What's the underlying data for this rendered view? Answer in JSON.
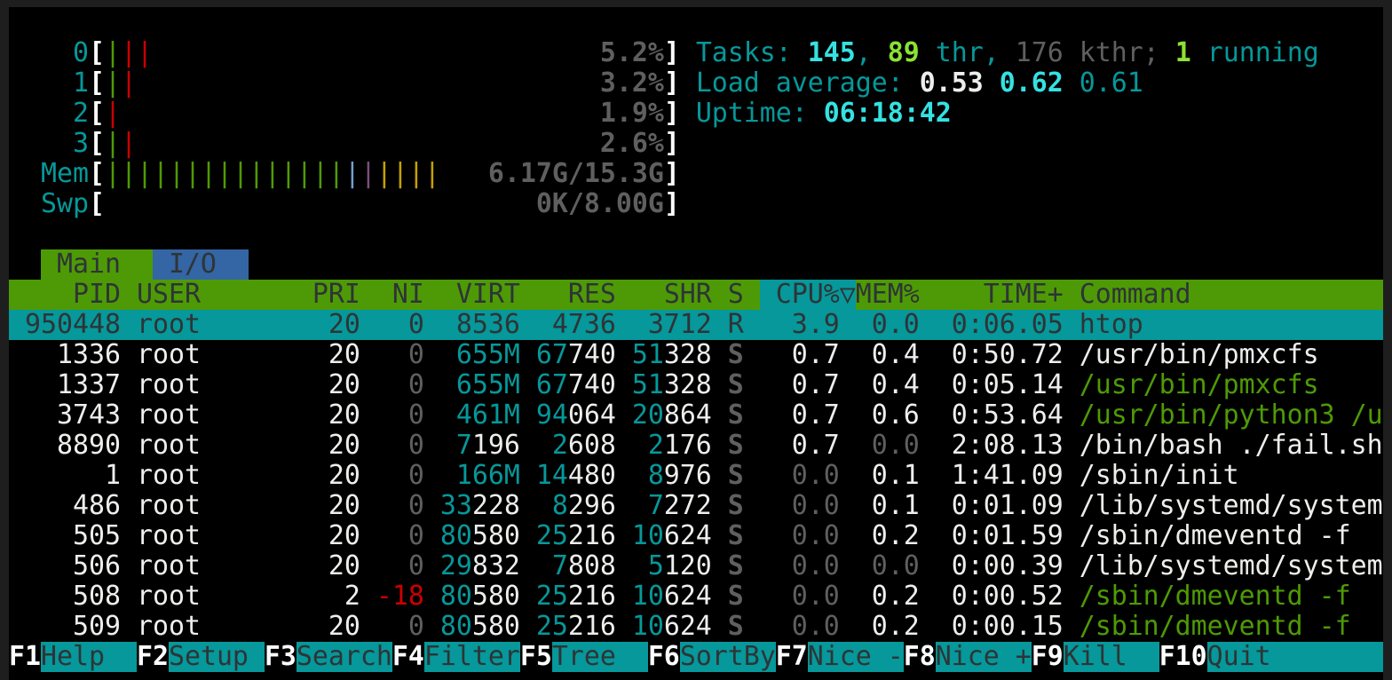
{
  "palette": {
    "teal": "#06989a",
    "cyan": "#34e2e2",
    "green": "#4e9a06",
    "lgreen": "#8ae234",
    "gray": "#5f5f5f",
    "white": "#eeeeec",
    "red": "#cc0000",
    "dark": "#2e3436",
    "blue": "#729fcf",
    "purple": "#75507b",
    "yellow": "#c4a000",
    "tabblue": "#3465a4"
  },
  "meters": {
    "cpus": [
      {
        "label": "0",
        "bars": [
          "green",
          "red",
          "red"
        ],
        "value": "5.2%"
      },
      {
        "label": "1",
        "bars": [
          "green",
          "red"
        ],
        "value": "3.2%"
      },
      {
        "label": "2",
        "bars": [
          "red"
        ],
        "value": "1.9%"
      },
      {
        "label": "3",
        "bars": [
          "green",
          "red"
        ],
        "value": "2.6%"
      }
    ],
    "mem": {
      "label": "Mem",
      "segments": [
        {
          "color": "green",
          "count": 15
        },
        {
          "color": "blue",
          "count": 1
        },
        {
          "color": "purple",
          "count": 1
        },
        {
          "color": "yellow",
          "count": 4
        }
      ],
      "value": "6.17G/15.3G"
    },
    "swp": {
      "label": "Swp",
      "segments": [],
      "value": "0K/8.00G"
    }
  },
  "summary": {
    "tasks": [
      {
        "text": "Tasks:",
        "color": "teal"
      },
      {
        "text": "145",
        "color": "cyan",
        "bold": true
      },
      {
        "text": ",",
        "color": "teal",
        "nospace": true
      },
      {
        "text": "89",
        "color": "lgreen",
        "bold": true
      },
      {
        "text": "thr,",
        "color": "teal"
      },
      {
        "text": "176",
        "color": "gray"
      },
      {
        "text": "kthr;",
        "color": "gray"
      },
      {
        "text": "1",
        "color": "lgreen",
        "bold": true
      },
      {
        "text": "running",
        "color": "teal"
      }
    ],
    "load": [
      {
        "text": "Load average:",
        "color": "teal"
      },
      {
        "text": "0.53",
        "color": "white",
        "bold": true
      },
      {
        "text": "0.62",
        "color": "cyan",
        "bold": true
      },
      {
        "text": "0.61",
        "color": "teal"
      }
    ],
    "uptime": [
      {
        "text": "Uptime:",
        "color": "teal"
      },
      {
        "text": "06:18:42",
        "color": "cyan",
        "bold": true
      }
    ]
  },
  "tabs": [
    {
      "label": "Main",
      "active": true
    },
    {
      "label": "I/O",
      "active": false
    }
  ],
  "columns": {
    "pid": "PID",
    "user": "USER",
    "pri": "PRI",
    "ni": "NI",
    "virt": "VIRT",
    "res": "RES",
    "shr": "SHR",
    "state": "S",
    "cpu": "CPU%",
    "sort_indicator": "▽",
    "mem": "MEM%",
    "time": "TIME+",
    "command": "Command"
  },
  "processes": [
    {
      "pid": "950448",
      "user": "root",
      "pri": "20",
      "ni": "0",
      "virt": "8536",
      "res": "4736",
      "shr": "3712",
      "state": "R",
      "cpu": "3.9",
      "mem": "0.0",
      "time": "0:06.05",
      "command": "htop",
      "selected": true
    },
    {
      "pid": "1336",
      "user": "root",
      "pri": "20",
      "ni": "0",
      "virt": "655M",
      "res": "67740",
      "shr": "51328",
      "state": "S",
      "cpu": "0.7",
      "mem": "0.4",
      "time": "0:50.72",
      "command": "/usr/bin/pmxcfs"
    },
    {
      "pid": "1337",
      "user": "root",
      "pri": "20",
      "ni": "0",
      "virt": "655M",
      "res": "67740",
      "shr": "51328",
      "state": "S",
      "cpu": "0.7",
      "mem": "0.4",
      "time": "0:05.14",
      "command": "/usr/bin/pmxcfs",
      "thread": true
    },
    {
      "pid": "3743",
      "user": "root",
      "pri": "20",
      "ni": "0",
      "virt": "461M",
      "res": "94064",
      "shr": "20864",
      "state": "S",
      "cpu": "0.7",
      "mem": "0.6",
      "time": "0:53.64",
      "command": "/usr/bin/python3 /u",
      "thread": true
    },
    {
      "pid": "8890",
      "user": "root",
      "pri": "20",
      "ni": "0",
      "virt": "7196",
      "res": "2608",
      "shr": "2176",
      "state": "S",
      "cpu": "0.7",
      "mem": "0.0",
      "time": "2:08.13",
      "command": "/bin/bash ./fail.sh"
    },
    {
      "pid": "1",
      "user": "root",
      "pri": "20",
      "ni": "0",
      "virt": "166M",
      "res": "14480",
      "shr": "8976",
      "state": "S",
      "cpu": "0.0",
      "mem": "0.1",
      "time": "1:41.09",
      "command": "/sbin/init"
    },
    {
      "pid": "486",
      "user": "root",
      "pri": "20",
      "ni": "0",
      "virt": "33228",
      "res": "8296",
      "shr": "7272",
      "state": "S",
      "cpu": "0.0",
      "mem": "0.1",
      "time": "0:01.09",
      "command": "/lib/systemd/system"
    },
    {
      "pid": "505",
      "user": "root",
      "pri": "20",
      "ni": "0",
      "virt": "80580",
      "res": "25216",
      "shr": "10624",
      "state": "S",
      "cpu": "0.0",
      "mem": "0.2",
      "time": "0:01.59",
      "command": "/sbin/dmeventd -f"
    },
    {
      "pid": "506",
      "user": "root",
      "pri": "20",
      "ni": "0",
      "virt": "29832",
      "res": "7808",
      "shr": "5120",
      "state": "S",
      "cpu": "0.0",
      "mem": "0.0",
      "time": "0:00.39",
      "command": "/lib/systemd/system"
    },
    {
      "pid": "508",
      "user": "root",
      "pri": "2",
      "ni": "-18",
      "virt": "80580",
      "res": "25216",
      "shr": "10624",
      "state": "S",
      "cpu": "0.0",
      "mem": "0.2",
      "time": "0:00.52",
      "command": "/sbin/dmeventd -f",
      "thread": true
    },
    {
      "pid": "509",
      "user": "root",
      "pri": "20",
      "ni": "0",
      "virt": "80580",
      "res": "25216",
      "shr": "10624",
      "state": "S",
      "cpu": "0.0",
      "mem": "0.2",
      "time": "0:00.15",
      "command": "/sbin/dmeventd -f",
      "thread": true
    }
  ],
  "function_keys": [
    {
      "key": "F1",
      "label": "Help"
    },
    {
      "key": "F2",
      "label": "Setup"
    },
    {
      "key": "F3",
      "label": "Search"
    },
    {
      "key": "F4",
      "label": "Filter"
    },
    {
      "key": "F5",
      "label": "Tree"
    },
    {
      "key": "F6",
      "label": "SortBy"
    },
    {
      "key": "F7",
      "label": "Nice -"
    },
    {
      "key": "F8",
      "label": "Nice +"
    },
    {
      "key": "F9",
      "label": "Kill"
    },
    {
      "key": "F10",
      "label": "Quit"
    }
  ]
}
